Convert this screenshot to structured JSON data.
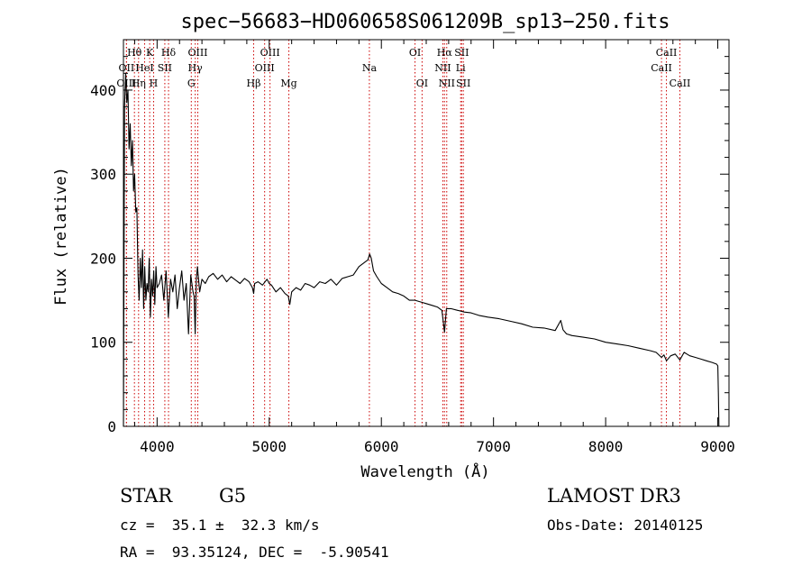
{
  "chart_data": {
    "type": "line",
    "title": "spec−56683−HD060658S061209B_sp13−250.fits",
    "xlabel": "Wavelength (Å)",
    "ylabel": "Flux (relative)",
    "xlim": [
      3700,
      9100
    ],
    "ylim": [
      0,
      460
    ],
    "xticks": [
      4000,
      5000,
      6000,
      7000,
      8000,
      9000
    ],
    "yticks": [
      0,
      100,
      200,
      300,
      400
    ],
    "xtick_labels": [
      "4000",
      "5000",
      "6000",
      "7000",
      "8000",
      "9000"
    ],
    "ytick_labels": [
      "0",
      "100",
      "200",
      "300",
      "400"
    ],
    "grid": false,
    "series": [
      {
        "name": "flux",
        "x": [
          3700,
          3710,
          3720,
          3730,
          3740,
          3750,
          3760,
          3770,
          3780,
          3790,
          3800,
          3810,
          3820,
          3830,
          3840,
          3850,
          3860,
          3870,
          3880,
          3890,
          3900,
          3910,
          3920,
          3930,
          3940,
          3950,
          3960,
          3970,
          3980,
          3990,
          4000,
          4020,
          4040,
          4060,
          4080,
          4100,
          4120,
          4140,
          4160,
          4180,
          4200,
          4220,
          4240,
          4260,
          4280,
          4300,
          4320,
          4330,
          4340,
          4350,
          4360,
          4380,
          4400,
          4430,
          4460,
          4500,
          4540,
          4580,
          4620,
          4660,
          4700,
          4740,
          4780,
          4820,
          4850,
          4861,
          4870,
          4900,
          4940,
          4980,
          5000,
          5020,
          5060,
          5100,
          5140,
          5170,
          5183,
          5200,
          5240,
          5280,
          5320,
          5360,
          5400,
          5450,
          5500,
          5550,
          5600,
          5650,
          5700,
          5750,
          5800,
          5850,
          5880,
          5895,
          5910,
          5930,
          5960,
          6000,
          6050,
          6100,
          6150,
          6200,
          6250,
          6300,
          6350,
          6400,
          6450,
          6500,
          6540,
          6563,
          6580,
          6620,
          6680,
          6740,
          6800,
          6870,
          6950,
          7050,
          7150,
          7250,
          7350,
          7450,
          7550,
          7600,
          7620,
          7650,
          7700,
          7800,
          7900,
          8000,
          8100,
          8200,
          8300,
          8400,
          8450,
          8498,
          8520,
          8542,
          8580,
          8620,
          8662,
          8700,
          8750,
          8800,
          8850,
          8900,
          8950,
          8990,
          9000,
          9005,
          9010
        ],
        "values": [
          0,
          380,
          420,
          385,
          400,
          330,
          360,
          310,
          340,
          280,
          300,
          255,
          260,
          180,
          150,
          200,
          165,
          210,
          140,
          190,
          150,
          170,
          160,
          200,
          130,
          175,
          155,
          185,
          145,
          190,
          165,
          170,
          180,
          150,
          185,
          130,
          175,
          160,
          180,
          140,
          165,
          185,
          150,
          170,
          110,
          180,
          160,
          155,
          110,
          175,
          190,
          160,
          175,
          170,
          178,
          182,
          175,
          180,
          172,
          178,
          174,
          170,
          176,
          172,
          165,
          158,
          170,
          172,
          168,
          175,
          170,
          168,
          160,
          165,
          158,
          155,
          145,
          160,
          165,
          162,
          170,
          168,
          165,
          172,
          170,
          175,
          168,
          176,
          178,
          180,
          190,
          195,
          198,
          205,
          200,
          185,
          178,
          170,
          165,
          160,
          158,
          155,
          150,
          150,
          148,
          146,
          144,
          142,
          138,
          112,
          140,
          140,
          138,
          136,
          135,
          132,
          130,
          128,
          125,
          122,
          118,
          117,
          114,
          126,
          115,
          110,
          108,
          106,
          104,
          100,
          98,
          96,
          93,
          90,
          88,
          82,
          85,
          78,
          84,
          86,
          79,
          88,
          84,
          82,
          80,
          78,
          76,
          74,
          72,
          40,
          0
        ]
      }
    ],
    "emission_lines": [
      {
        "label": "Hθ",
        "x": 3798,
        "row": 1
      },
      {
        "label": "OII",
        "x": 3727,
        "row": 2
      },
      {
        "label": "OIII",
        "x": 3727,
        "row": 3
      },
      {
        "label": "K",
        "x": 3934,
        "row": 1
      },
      {
        "label": "HeI",
        "x": 3889,
        "row": 2
      },
      {
        "label": "Hη",
        "x": 3835,
        "row": 3
      },
      {
        "label": "SII",
        "x": 4069,
        "row": 2
      },
      {
        "label": "H",
        "x": 3969,
        "row": 3
      },
      {
        "label": "Hδ",
        "x": 4102,
        "row": 1
      },
      {
        "label": "OIII",
        "x": 4363,
        "row": 1
      },
      {
        "label": "Hγ",
        "x": 4340,
        "row": 2
      },
      {
        "label": "G",
        "x": 4305,
        "row": 3
      },
      {
        "label": "OIII",
        "x": 5007,
        "row": 1
      },
      {
        "label": "OIII",
        "x": 4959,
        "row": 2
      },
      {
        "label": "Hβ",
        "x": 4861,
        "row": 3
      },
      {
        "label": "Mg",
        "x": 5175,
        "row": 3
      },
      {
        "label": "Na",
        "x": 5893,
        "row": 2
      },
      {
        "label": "OI",
        "x": 6300,
        "row": 1
      },
      {
        "label": "OI",
        "x": 6363,
        "row": 3
      },
      {
        "label": "Hα",
        "x": 6563,
        "row": 1
      },
      {
        "label": "NII",
        "x": 6548,
        "row": 2
      },
      {
        "label": "NII",
        "x": 6583,
        "row": 3
      },
      {
        "label": "SII",
        "x": 6716,
        "row": 1
      },
      {
        "label": "Li",
        "x": 6707,
        "row": 2
      },
      {
        "label": "SII",
        "x": 6731,
        "row": 3
      },
      {
        "label": "CaII",
        "x": 8542,
        "row": 1
      },
      {
        "label": "CaII",
        "x": 8498,
        "row": 2
      },
      {
        "label": "CaII",
        "x": 8662,
        "row": 3
      }
    ]
  },
  "info": {
    "object_class": "STAR",
    "subclass": "G5",
    "survey": "LAMOST DR3",
    "redshift_line": "cz =  35.1 ±  32.3 km/s",
    "obs_date": "Obs-Date: 20140125",
    "coords": "RA =  93.35124, DEC =  -5.90541"
  },
  "colors": {
    "line": "#000000",
    "marker": "#cc0000",
    "background": "#ffffff"
  }
}
